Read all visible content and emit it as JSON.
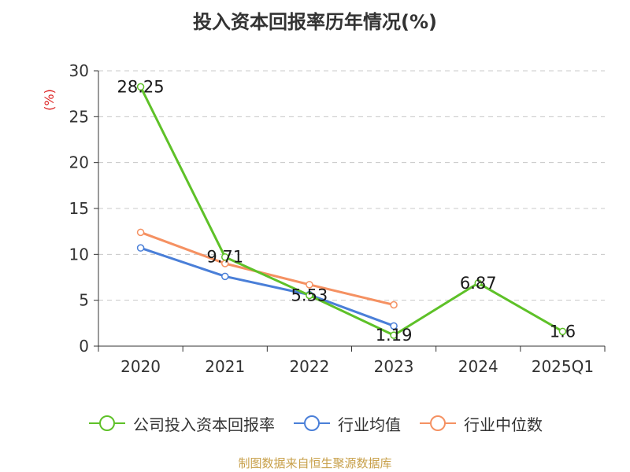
{
  "title": "投入资本回报率历年情况(%)",
  "source": "制图数据来自恒生聚源数据库",
  "colors": {
    "company": "#5ec128",
    "industry_avg": "#4a7fd8",
    "industry_median": "#f59162",
    "axis": "#333333",
    "grid": "#c8c8c8",
    "ylabel": "#dd2222"
  },
  "chart_data": {
    "type": "line",
    "title": "投入资本回报率历年情况(%)",
    "xlabel": "",
    "ylabel": "(%)",
    "ylim": [
      0,
      30
    ],
    "yticks": [
      0,
      5,
      10,
      15,
      20,
      25,
      30
    ],
    "grid": true,
    "legend": "bottom",
    "categories": [
      "2020",
      "2021",
      "2022",
      "2023",
      "2024",
      "2025Q1"
    ],
    "series": [
      {
        "name": "公司投入资本回报率",
        "values": [
          28.25,
          9.71,
          5.53,
          1.19,
          6.87,
          1.6
        ],
        "labels": [
          "28.25",
          "9.71",
          "5.53",
          "1.19",
          "6.87",
          "1.6"
        ]
      },
      {
        "name": "行业均值",
        "values": [
          10.7,
          7.6,
          5.6,
          2.2,
          null,
          null
        ]
      },
      {
        "name": "行业中位数",
        "values": [
          12.4,
          9.0,
          6.7,
          4.5,
          null,
          null
        ]
      }
    ]
  }
}
